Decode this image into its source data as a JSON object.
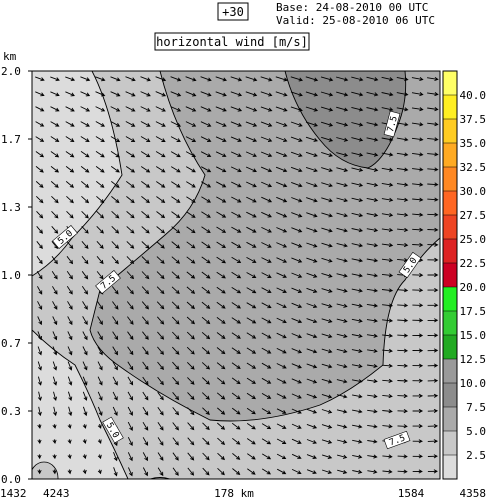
{
  "header": {
    "step_label": "+30",
    "base_label": "Base: 24-08-2010  00 UTC",
    "valid_label": "Valid: 25-08-2010  06 UTC",
    "title": "horizontal wind [m/s]"
  },
  "chart_data": {
    "type": "heatmap",
    "title": "horizontal wind [m/s]",
    "ylabel": "km",
    "ylim": [
      0.0,
      2.0
    ],
    "y_ticks": [
      "0.0",
      "0.3",
      "0.7",
      "1.0",
      "1.3",
      "1.7",
      "2.0"
    ],
    "x_labels": {
      "left_pos": "1432",
      "left_height": "4243",
      "center": "178 km",
      "right_pos": "1584",
      "right_height": "4358"
    },
    "colorbar": {
      "levels": [
        "2.5",
        "5.0",
        "7.5",
        "10.0",
        "12.5",
        "15.0",
        "17.5",
        "20.0",
        "22.5",
        "25.0",
        "27.5",
        "30.0",
        "32.5",
        "35.0",
        "37.5",
        "40.0"
      ],
      "colors": [
        "#dcdcdc",
        "#c8c8c8",
        "#aaaaaa",
        "#8c8c8c",
        "#9a9a9a",
        "#22aa22",
        "#33cc33",
        "#22ee22",
        "#cc0022",
        "#dd2222",
        "#ee4422",
        "#ff6622",
        "#ff8822",
        "#ffaa22",
        "#ffcc22",
        "#ffee22",
        "#ffff66"
      ]
    },
    "contour_labels": [
      {
        "value": "5.0",
        "where": "left, near 1.2 km"
      },
      {
        "value": "7.5",
        "where": "center-left, near 0.95 km"
      },
      {
        "value": "7.5",
        "where": "upper right, near 1.8 km"
      },
      {
        "value": "5.0",
        "where": "right, near 1.0 km"
      },
      {
        "value": "5.0",
        "where": "lower left, near 0.2 km"
      },
      {
        "value": "7.5",
        "where": "lower right, near 0.2 km"
      }
    ],
    "wind_field": {
      "regions": [
        {
          "range": "2.5-5.0",
          "where": "left edge and bottom-left corner"
        },
        {
          "range": "5.0-7.5",
          "where": "left side, lower band and right edge"
        },
        {
          "range": "7.5-10.0",
          "where": "central and upper area"
        },
        {
          "range": "10.0-12.5",
          "where": "upper right core near 2.0 km"
        }
      ],
      "direction": "mostly from west-northwest, turning southward in the lower left"
    }
  }
}
